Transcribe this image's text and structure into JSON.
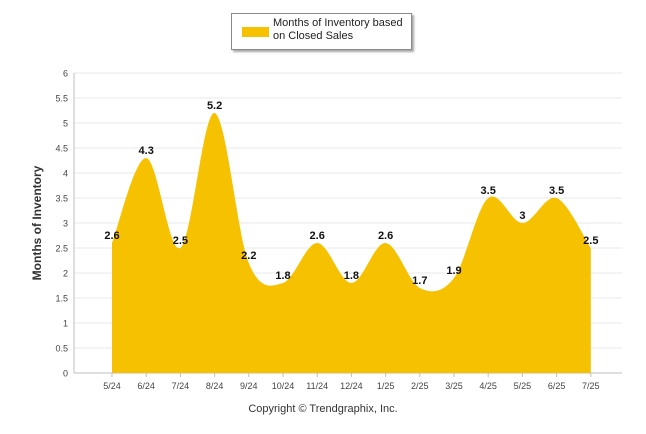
{
  "legend": {
    "label": "Months of Inventory based on Closed Sales",
    "color": "#F5C100"
  },
  "footer": {
    "copyright": "Copyright © Trendgraphix, Inc."
  },
  "chart_data": {
    "type": "area",
    "smoothed": true,
    "ylabel": "Months of Inventory",
    "xlabel": "",
    "ylim": [
      0,
      6
    ],
    "yticks": [
      0,
      0.5,
      1,
      1.5,
      2,
      2.5,
      3,
      3.5,
      4,
      4.5,
      5,
      5.5,
      6
    ],
    "grid": true,
    "legend_position": "top-center",
    "categories": [
      "5/24",
      "6/24",
      "7/24",
      "8/24",
      "9/24",
      "10/24",
      "11/24",
      "12/24",
      "1/25",
      "2/25",
      "3/25",
      "4/25",
      "5/25",
      "6/25",
      "7/25"
    ],
    "series": [
      {
        "name": "Months of Inventory based on Closed Sales",
        "color": "#F5C100",
        "values": [
          2.6,
          4.3,
          2.5,
          5.2,
          2.2,
          1.8,
          2.6,
          1.8,
          2.6,
          1.7,
          1.9,
          3.5,
          3,
          3.5,
          2.5
        ]
      }
    ]
  }
}
